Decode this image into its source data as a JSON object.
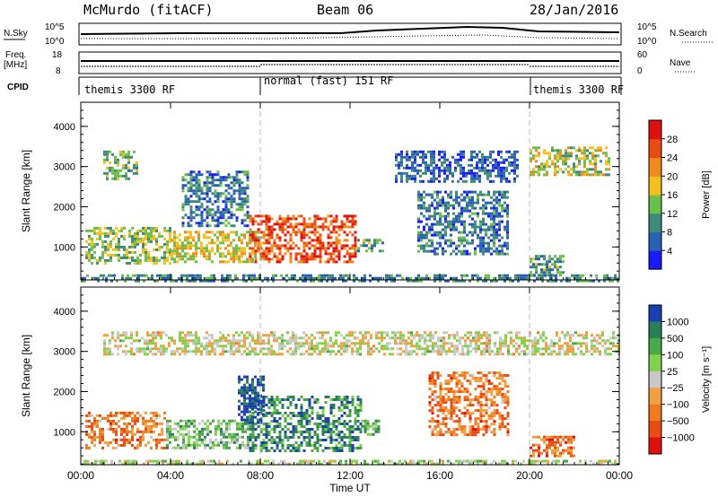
{
  "header": {
    "station": "McMurdo (fitACF)",
    "beam": "Beam 06",
    "date": "28/Jan/2016"
  },
  "top_panels": {
    "nsky_label": "N.Sky",
    "nsky_ticks": [
      "10^5",
      "10^0"
    ],
    "nsearch_label": "N.Search",
    "nsearch_ticks": [
      "10^5",
      "10^0"
    ],
    "freq_label": "Freq.",
    "freq_unit": "[MHz]",
    "freq_ticks": [
      "18",
      "8"
    ],
    "nave_label": "Nave",
    "nave_ticks": [
      "60",
      "0"
    ],
    "cpid_label": "CPID",
    "cpid_segments": [
      {
        "label": "themis 3300 RF",
        "start_hour": 0,
        "end_hour": 8
      },
      {
        "label": "normal (fast) 151 RF",
        "start_hour": 8,
        "end_hour": 20
      },
      {
        "label": "themis 3300 RF",
        "start_hour": 20,
        "end_hour": 24
      }
    ]
  },
  "chart_data": [
    {
      "type": "heatmap",
      "name": "power",
      "ylabel": "Slant Range [km]",
      "xlabel": "Time UT",
      "xlim": [
        0,
        24
      ],
      "ylim": [
        180,
        4600
      ],
      "x_tick_labels": [
        "00:00",
        "04:00",
        "08:00",
        "12:00",
        "16:00",
        "20:00",
        "00:00"
      ],
      "x_tick_hours": [
        0,
        4,
        8,
        12,
        16,
        20,
        24
      ],
      "y_ticks": [
        1000,
        2000,
        3000,
        4000
      ],
      "colorbar_label": "Power [dB]",
      "colorbar_ticks": [
        "4",
        "8",
        "12",
        "16",
        "20",
        "24",
        "28"
      ],
      "colorbar_colors": [
        "#1a1aff",
        "#2a5fb8",
        "#3f8a7a",
        "#6bbf4a",
        "#f2c11e",
        "#f08a1c",
        "#e84c12",
        "#e01010"
      ],
      "cpid_change_hours": [
        8,
        20
      ],
      "echo_regions": [
        {
          "t0": 0.2,
          "t1": 4.0,
          "r0": 600,
          "r1": 1500,
          "level": 0.45
        },
        {
          "t0": 4.0,
          "t1": 8.0,
          "r0": 600,
          "r1": 1400,
          "level": 0.55
        },
        {
          "t0": 7.5,
          "t1": 12.2,
          "r0": 600,
          "r1": 1800,
          "level": 0.8
        },
        {
          "t0": 12.2,
          "t1": 13.5,
          "r0": 900,
          "r1": 1200,
          "level": 0.35
        },
        {
          "t0": 1.0,
          "t1": 2.5,
          "r0": 2700,
          "r1": 3400,
          "level": 0.4
        },
        {
          "t0": 4.5,
          "t1": 7.5,
          "r0": 1500,
          "r1": 2900,
          "level": 0.25
        },
        {
          "t0": 14.0,
          "t1": 19.5,
          "r0": 2600,
          "r1": 3400,
          "level": 0.2
        },
        {
          "t0": 15.0,
          "t1": 19.0,
          "r0": 800,
          "r1": 2400,
          "level": 0.25
        },
        {
          "t0": 20.0,
          "t1": 23.5,
          "r0": 2800,
          "r1": 3500,
          "level": 0.5
        },
        {
          "t0": 20.0,
          "t1": 21.5,
          "r0": 300,
          "r1": 800,
          "level": 0.35
        },
        {
          "t0": 0.0,
          "t1": 24.0,
          "r0": 180,
          "r1": 320,
          "level": 0.3
        }
      ]
    },
    {
      "type": "heatmap",
      "name": "velocity",
      "ylabel": "Slant Range [km]",
      "xlabel": "Time UT",
      "xlim": [
        0,
        24
      ],
      "ylim": [
        180,
        4600
      ],
      "x_tick_labels": [
        "00:00",
        "04:00",
        "08:00",
        "12:00",
        "16:00",
        "20:00",
        "00:00"
      ],
      "x_tick_hours": [
        0,
        4,
        8,
        12,
        16,
        20,
        24
      ],
      "y_ticks": [
        1000,
        2000,
        3000,
        4000
      ],
      "colorbar_label": "Velocity [m s⁻¹]",
      "colorbar_ticks": [
        "1000",
        "500",
        "100",
        "25",
        "−25",
        "−100",
        "−500",
        "−1000"
      ],
      "colorbar_colors": [
        "#1a3fb0",
        "#2a7f5a",
        "#4aa84a",
        "#7fd24a",
        "#c8c8c8",
        "#f0a040",
        "#f07a20",
        "#e84c12",
        "#e01010"
      ],
      "cpid_change_hours": [
        8,
        20
      ],
      "echo_regions": [
        {
          "t0": 0.2,
          "t1": 3.8,
          "r0": 600,
          "r1": 1500,
          "level": 0.72
        },
        {
          "t0": 3.8,
          "t1": 7.5,
          "r0": 600,
          "r1": 1300,
          "level": 0.35
        },
        {
          "t0": 7.5,
          "t1": 12.5,
          "r0": 550,
          "r1": 1900,
          "level": 0.2
        },
        {
          "t0": 7.0,
          "t1": 8.2,
          "r0": 1200,
          "r1": 2400,
          "level": 0.05
        },
        {
          "t0": 12.5,
          "t1": 13.3,
          "r0": 900,
          "r1": 1300,
          "level": 0.3
        },
        {
          "t0": 1.0,
          "t1": 24.0,
          "r0": 2900,
          "r1": 3500,
          "level": 0.5
        },
        {
          "t0": 15.5,
          "t1": 19.0,
          "r0": 900,
          "r1": 2500,
          "level": 0.72
        },
        {
          "t0": 20.0,
          "t1": 22.0,
          "r0": 400,
          "r1": 900,
          "level": 0.75
        },
        {
          "t0": 0.0,
          "t1": 24.0,
          "r0": 180,
          "r1": 300,
          "level": 0.45
        }
      ]
    }
  ]
}
